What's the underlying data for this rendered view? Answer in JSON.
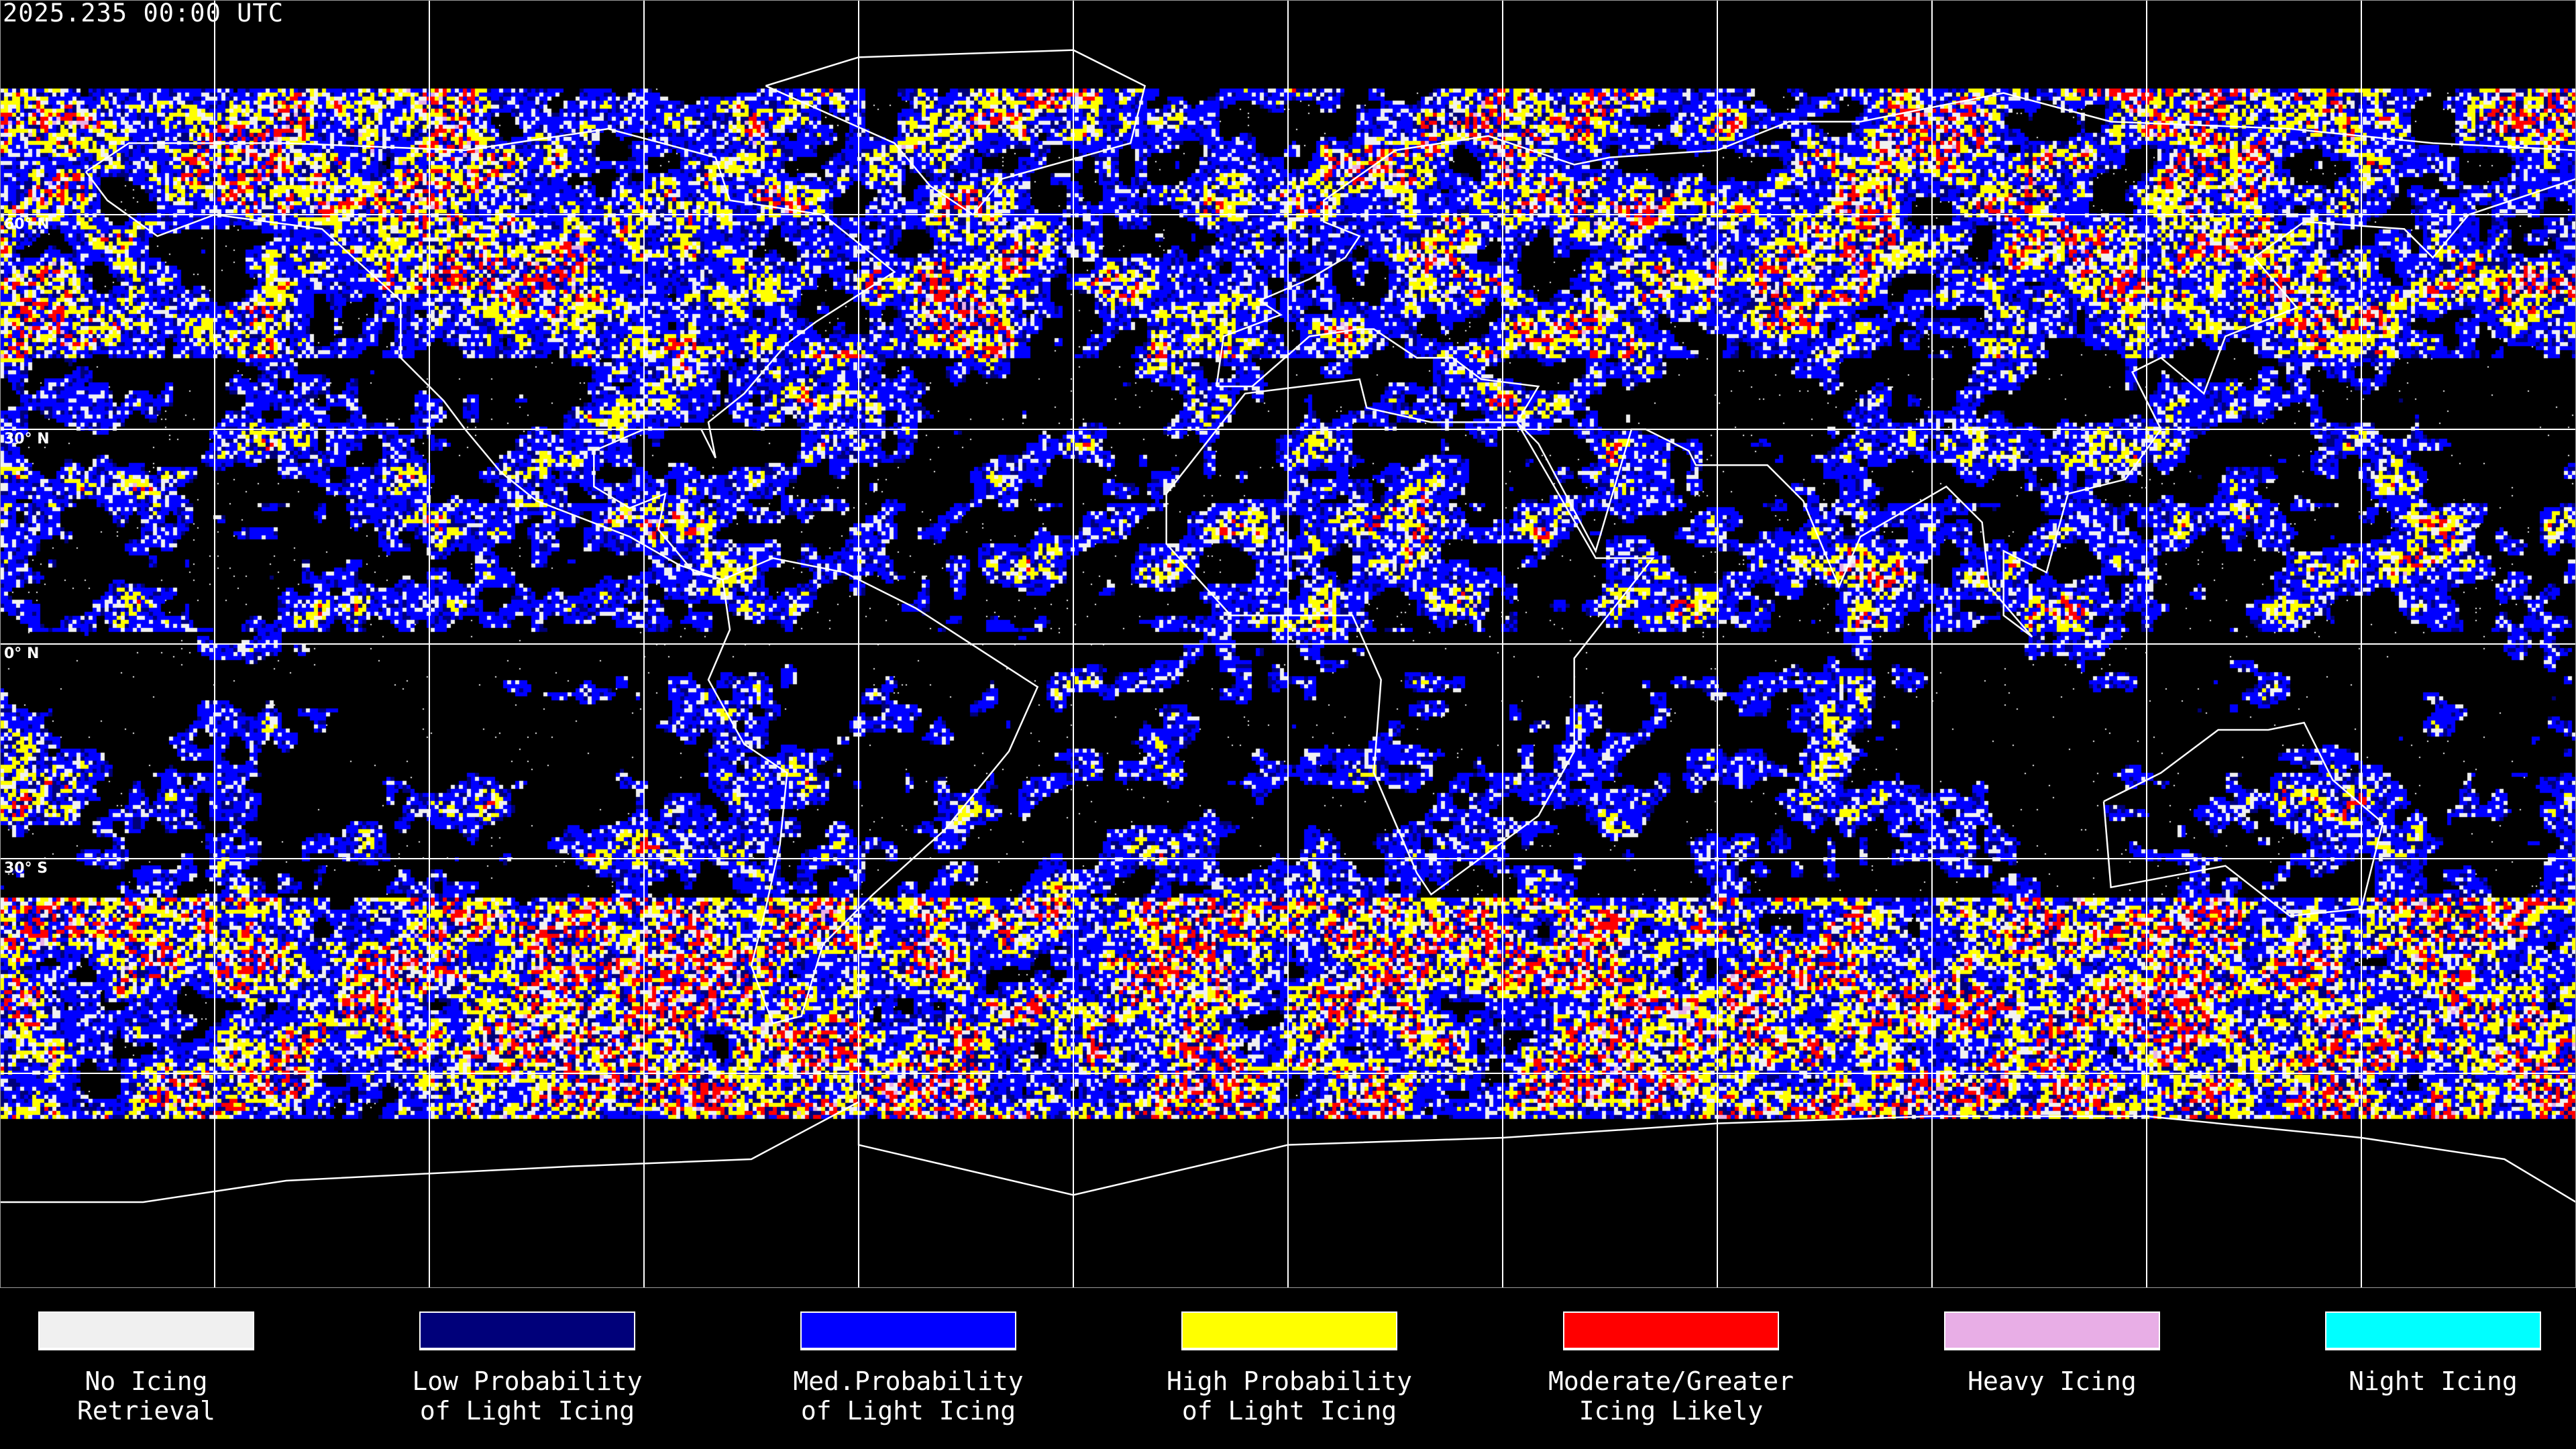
{
  "header": {
    "title": "2025.235 00:00 UTC"
  },
  "map": {
    "projection": "equirectangular",
    "grid_spacing_degrees": 30,
    "lat_labels": [
      "60° N",
      "30° N",
      "0° N",
      "30° S"
    ],
    "coastline_color": "#ffffff",
    "grid_color": "#ffffff",
    "background": "#000000"
  },
  "legend": {
    "items": [
      {
        "line1": "No Icing",
        "line2": "Retrieval",
        "color": "#f0f0f0"
      },
      {
        "line1": "Low Probability",
        "line2": "of Light Icing",
        "color": "#00007a"
      },
      {
        "line1": "Med.Probability",
        "line2": "of Light Icing",
        "color": "#0000ff"
      },
      {
        "line1": "High Probability",
        "line2": "of Light Icing",
        "color": "#ffff00"
      },
      {
        "line1": "Moderate/Greater",
        "line2": "Icing Likely",
        "color": "#ff0000"
      },
      {
        "line1": "Heavy Icing",
        "line2": "",
        "color": "#e8aee6"
      },
      {
        "line1": "Night Icing",
        "line2": "",
        "color": "#00ffff"
      }
    ]
  }
}
